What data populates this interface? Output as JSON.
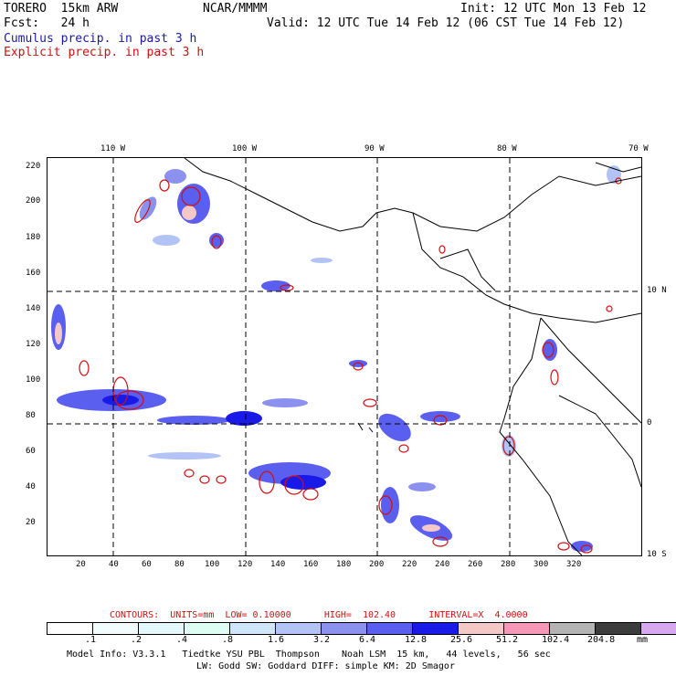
{
  "header": {
    "model": "TORERO  15km ARW",
    "org": "NCAR/MMMM",
    "init": "Init: 12 UTC Mon 13 Feb 12",
    "fcst": "Fcst:   24 h",
    "valid": "Valid: 12 UTC Tue 14 Feb 12 (06 CST Tue 14 Feb 12)",
    "cumulus": "Cumulus precip. in past 3 h",
    "explicit": "Explicit precip. in past 3 h"
  },
  "map": {
    "lon_labels": [
      "110 W",
      "100 W",
      "90 W",
      "80 W",
      "70 W"
    ],
    "lat_labels": [
      "10 N",
      "0",
      "10 S"
    ],
    "y_ticks": [
      "220",
      "200",
      "180",
      "160",
      "140",
      "120",
      "100",
      "80",
      "60",
      "40",
      "20"
    ],
    "x_ticks": [
      "20",
      "40",
      "60",
      "80",
      "100",
      "120",
      "140",
      "160",
      "180",
      "200",
      "220",
      "240",
      "260",
      "280",
      "300",
      "320"
    ]
  },
  "contours": {
    "units": "CONTOURS:  UNITS=mm  LOW= 0.10000",
    "high": "HIGH=  102.40",
    "interval": "INTERVAL=X  4.0000"
  },
  "colorbar": {
    "colors": [
      "#ffffff",
      "#f2fbff",
      "#e4f7fa",
      "#e0fff4",
      "#cfe6fa",
      "#b3c3f5",
      "#8c91f0",
      "#5b5ff0",
      "#1a1ae8",
      "#f5c8c8",
      "#f598b8",
      "#b4b4b4",
      "#3c3c3c",
      "#d8a8f0"
    ],
    "labels": [
      ".1",
      ".2",
      ".4",
      ".8",
      "1.6",
      "3.2",
      "6.4",
      "12.8",
      "25.6",
      "51.2",
      "102.4",
      "204.8"
    ],
    "unit": "mm"
  },
  "info": {
    "line1": "Model Info: V3.3.1   Tiedtke YSU PBL  Thompson    Noah LSM  15 km,   44 levels,   56 sec",
    "line2": "LW: Godd SW: Goddard DIFF: simple KM: 2D Smagor"
  },
  "colors": {
    "cumulus": "#1a1aa0",
    "explicit": "#d01010"
  }
}
